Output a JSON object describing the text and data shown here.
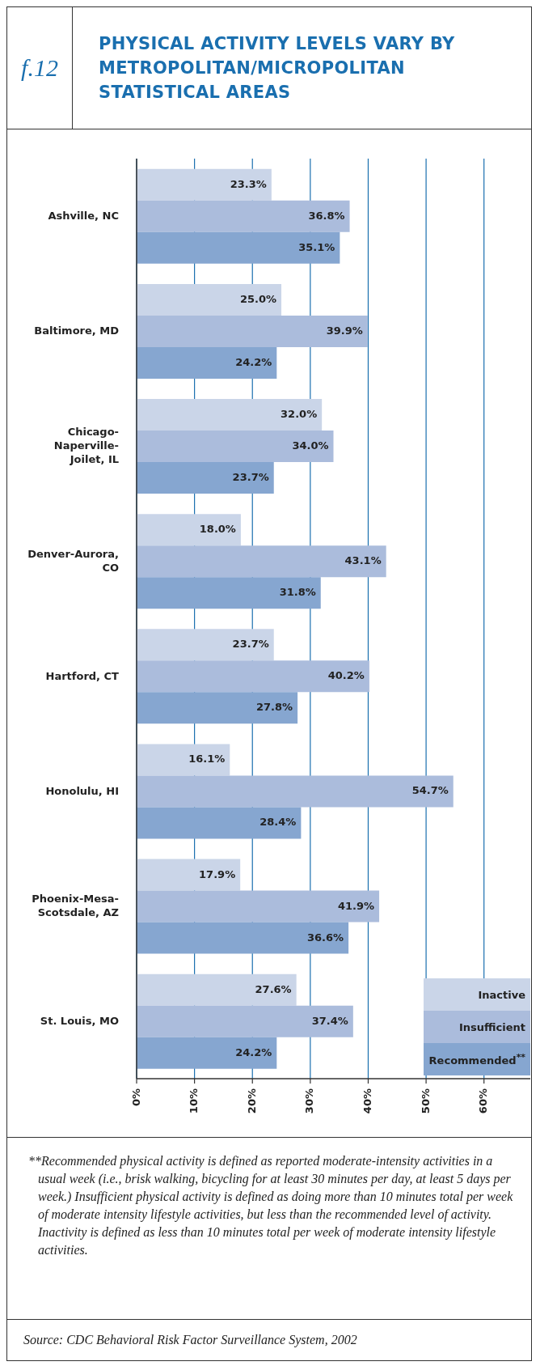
{
  "chart_data": {
    "type": "bar",
    "orientation": "horizontal",
    "title": "PHYSICAL ACTIVITY LEVELS VARY BY METROPOLITAN/MICROPOLITAN STATISTICAL AREAS",
    "categories": [
      "Ashville, NC",
      "Baltimore, MD",
      "Chicago-Naperville-Joilet, IL",
      "Denver-Aurora, CO",
      "Hartford, CT",
      "Honolulu, HI",
      "Phoenix-Mesa-Scotsdale, AZ",
      "St. Louis, MO"
    ],
    "series": [
      {
        "name": "Inactive",
        "color": "#cad5e8",
        "values": [
          23.3,
          25.0,
          32.0,
          18.0,
          23.7,
          16.1,
          17.9,
          27.6
        ],
        "value_labels": [
          "23.3%",
          "25.0%",
          "32.0%",
          "18.0%",
          "23.7%",
          "16.1%",
          "17.9%",
          "27.6%"
        ]
      },
      {
        "name": "Insufficient",
        "color": "#abbcdc",
        "values": [
          36.8,
          39.9,
          34.0,
          43.1,
          40.2,
          54.7,
          41.9,
          37.4
        ],
        "value_labels": [
          "36.8%",
          "39.9%",
          "34.0%",
          "43.1%",
          "40.2%",
          "54.7%",
          "41.9%",
          "37.4%"
        ]
      },
      {
        "name": "Recommended$^{**}$",
        "color": "#86a6d0",
        "values": [
          35.1,
          24.2,
          23.7,
          31.8,
          27.8,
          28.4,
          36.6,
          24.2
        ],
        "value_labels": [
          "35.1%",
          "24.2%",
          "23.7%",
          "31.8%",
          "27.8%",
          "28.4%",
          "36.6%",
          "24.2%"
        ]
      }
    ],
    "xlim": [
      0,
      68
    ],
    "xticks": [
      {
        "value": 0,
        "label": "0%"
      },
      {
        "value": 10,
        "label": "10%"
      },
      {
        "value": 20,
        "label": "20%"
      },
      {
        "value": 30,
        "label": "30%"
      },
      {
        "value": 40,
        "label": "40%"
      },
      {
        "value": 50,
        "label": "50%"
      },
      {
        "value": 60,
        "label": "60%"
      }
    ],
    "grid": "x",
    "legend": "bottom right",
    "annotations": [
      "f.12",
      "**Recommended physical activity is defined as reported moderate-intensity activities in a usual week (i.e., brisk walking, bicycling for at least 30 minutes per day, at least 5 days per week.)  Insufficient physical activity is defined as doing more than 10 minutes total per week of moderate intensity lifestyle activities, but less than the recommended level of activity.  Inactivity is defined as less than 10 minutes total per week of moderate intensity lifestyle activities.",
      "Source:  CDC Behavioral Risk Factor Surveillance System, 2002"
    ]
  }
}
